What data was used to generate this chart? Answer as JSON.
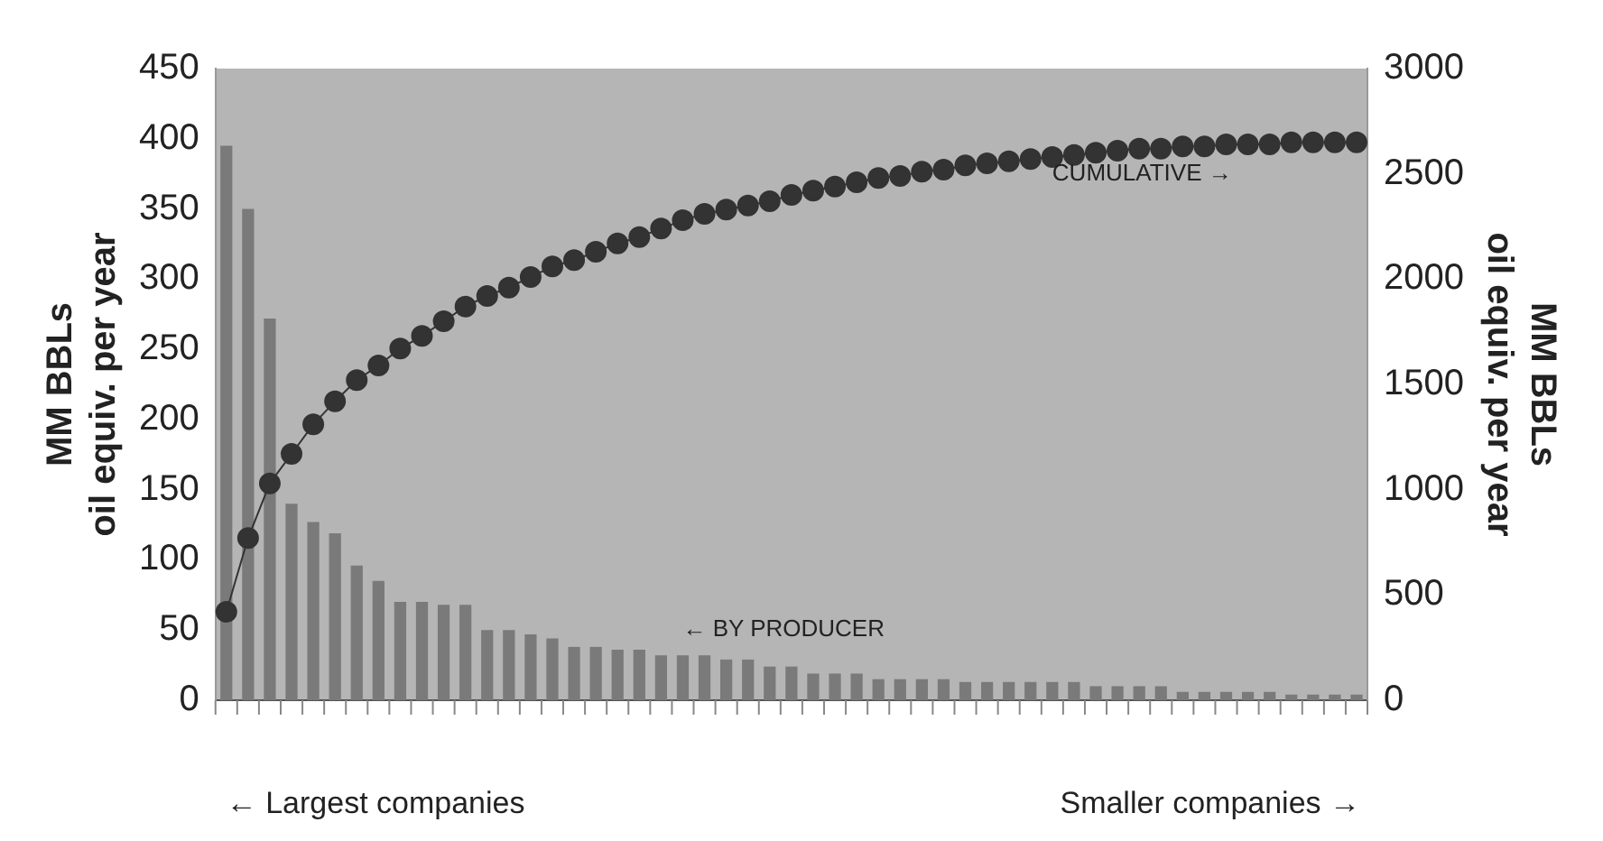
{
  "chart_data": {
    "type": "bar",
    "ylabel": "MM BBLs\noil equiv. per year",
    "y2label": "MM BBLs\noil equiv. per year",
    "categories": [
      null,
      null,
      null,
      null,
      null,
      null,
      null,
      null,
      null,
      null,
      null,
      null,
      null,
      null,
      null,
      null,
      null,
      null,
      null,
      null,
      null,
      null,
      null,
      null,
      null,
      null,
      null,
      null,
      null,
      null,
      null,
      null,
      null,
      null,
      null,
      null,
      null,
      null,
      null,
      null,
      null,
      null,
      null,
      null,
      null,
      null,
      null,
      null,
      null,
      null,
      null,
      null,
      null
    ],
    "series": [
      {
        "color": "#7a7a7a",
        "values": [
          395,
          350,
          272,
          140,
          127,
          119,
          96,
          85,
          70,
          70,
          68,
          68,
          50,
          50,
          47,
          44,
          38,
          38,
          36,
          36,
          32,
          32,
          32,
          29,
          29,
          24,
          24,
          19,
          19,
          19,
          15,
          15,
          15,
          15,
          13,
          13,
          13,
          13,
          13,
          13,
          10,
          10,
          10,
          10,
          6,
          6,
          6,
          6,
          6,
          4,
          4,
          4,
          4
        ]
      },
      {
        "type": "line",
        "axis": "y2",
        "color": "#333333",
        "marker": "circle",
        "values": [
          420,
          770,
          1030,
          1170,
          1310,
          1420,
          1520,
          1590,
          1670,
          1730,
          1800,
          1870,
          1920,
          1960,
          2010,
          2060,
          2090,
          2130,
          2170,
          2200,
          2240,
          2280,
          2310,
          2330,
          2350,
          2370,
          2400,
          2420,
          2440,
          2460,
          2480,
          2490,
          2510,
          2520,
          2540,
          2550,
          2560,
          2570,
          2580,
          2590,
          2600,
          2610,
          2620,
          2620,
          2630,
          2630,
          2640,
          2640,
          2640,
          2650,
          2650,
          2650,
          2650
        ]
      }
    ],
    "ylim": [
      0,
      450
    ],
    "yticks": [
      0,
      50,
      100,
      150,
      200,
      250,
      300,
      350,
      400,
      450
    ],
    "y2lim": [
      0,
      3000
    ],
    "y2ticks": [
      0,
      500,
      1000,
      1500,
      2000,
      2500,
      3000
    ],
    "tick_labels": "y",
    "grid": false,
    "legend": false,
    "annotations": [
      "CUMULATIVE →",
      "← BY PRODUCER",
      "← Largest companies",
      "Smaller companies →"
    ]
  }
}
